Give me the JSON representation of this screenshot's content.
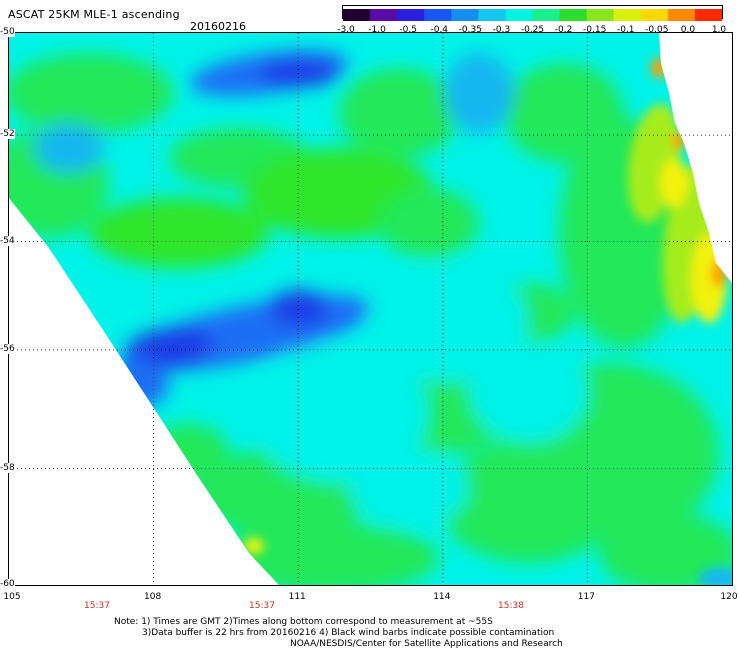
{
  "header": {
    "title": "ASCAT 25KM MLE-1 ascending",
    "date": "20160216"
  },
  "colorbar": {
    "ticks": [
      "-3.0",
      "-1.0",
      "-0.5",
      "-0.4",
      "-0.35",
      "-0.3",
      "-0.25",
      "-0.2",
      "-0.15",
      "-0.1",
      "-0.05",
      "0.0",
      "1.0"
    ],
    "colors": [
      "#220033",
      "#5a0aa6",
      "#2a1fe0",
      "#1a55f5",
      "#138ef5",
      "#10c8f0",
      "#00f3e0",
      "#18f08c",
      "#2ddc2d",
      "#8ae61a",
      "#d8f00a",
      "#ffd800",
      "#ff8a00",
      "#ff2a00"
    ]
  },
  "map": {
    "lat_labels": [
      "-50",
      "-52",
      "-54",
      "-56",
      "-58",
      "-60"
    ],
    "lon_labels": [
      "105",
      "108",
      "111",
      "114",
      "117",
      "120"
    ],
    "time_labels": [
      "15:37",
      "15:37",
      "15:38"
    ],
    "lon_range": [
      105,
      120
    ],
    "lat_range": [
      -60,
      -50
    ],
    "field_colors": {
      "base": "#00f2e8",
      "green": "#23e85a",
      "bright_green": "#2de62a",
      "yellow_green": "#a6ec1a",
      "yellow": "#f2f20a",
      "orange": "#ffa000",
      "blue": "#1a6ef5",
      "dark_blue": "#1c3ce6",
      "light_blue": "#13b6f0"
    }
  },
  "footer": {
    "line1": "Note: 1) Times are GMT 2)Times along bottom correspond to measurement at ~55S",
    "line2": "3)Data buffer is 22 hrs from 20160216 4) Black wind barbs indicate possible contamination",
    "line3": "NOAA/NESDIS/Center for Satellite Applications and Research"
  }
}
